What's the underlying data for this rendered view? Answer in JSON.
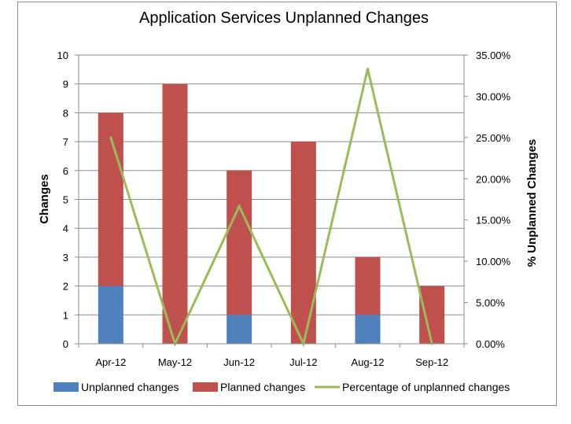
{
  "chart_data": {
    "type": "bar",
    "stacked": true,
    "title": "Application Services Unplanned Changes",
    "categories": [
      "Apr-12",
      "May-12",
      "Jun-12",
      "Jul-12",
      "Aug-12",
      "Sep-12"
    ],
    "ylabel": "Changes",
    "y2label": "% Unplanned Changes",
    "ylim": [
      0,
      10
    ],
    "y2lim": [
      0,
      0.35
    ],
    "yticks": [
      "0",
      "1",
      "2",
      "3",
      "4",
      "5",
      "6",
      "7",
      "8",
      "9",
      "10"
    ],
    "y2ticks": [
      "0.00%",
      "5.00%",
      "10.00%",
      "15.00%",
      "20.00%",
      "25.00%",
      "30.00%",
      "35.00%"
    ],
    "grid": true,
    "legend_position": "bottom",
    "series": [
      {
        "name": "Unplanned changes",
        "type": "bar",
        "axis": "left",
        "color": "#4f81bd",
        "values": [
          2,
          0,
          1,
          0,
          1,
          0
        ]
      },
      {
        "name": "Planned changes",
        "type": "bar",
        "axis": "left",
        "color": "#c0504d",
        "values": [
          6,
          9,
          5,
          7,
          2,
          2
        ]
      },
      {
        "name": "Percentage of unplanned changes",
        "type": "line",
        "axis": "right",
        "color": "#9bbb59",
        "values": [
          0.25,
          0.0,
          0.1667,
          0.0,
          0.3333,
          0.0
        ]
      }
    ]
  }
}
